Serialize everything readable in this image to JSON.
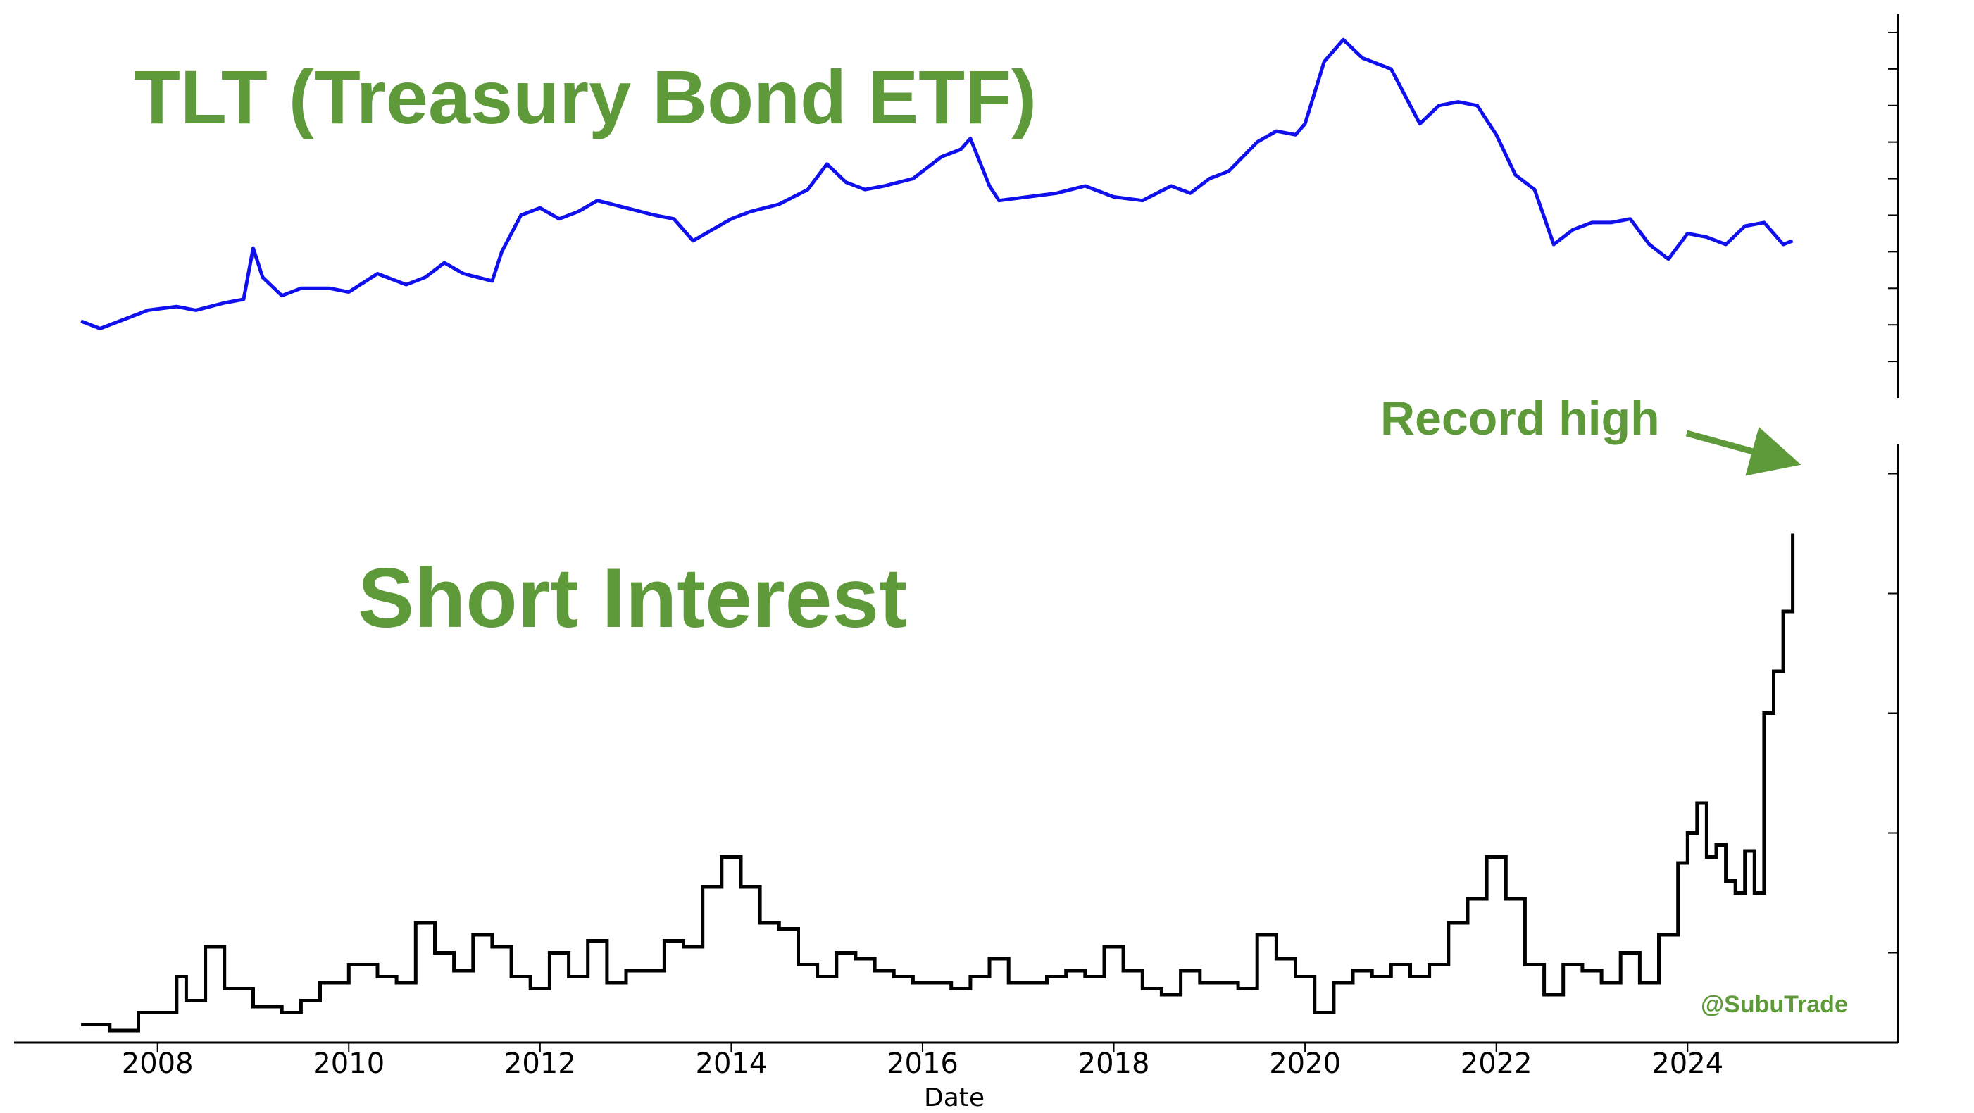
{
  "chart_data": [
    {
      "type": "line",
      "title": "TLT (Treasury Bond ETF)",
      "series_color": "#1010ee",
      "ylim": [
        70,
        175
      ],
      "x": [
        2007.2,
        2007.4,
        2007.6,
        2007.9,
        2008.2,
        2008.4,
        2008.7,
        2008.9,
        2009.0,
        2009.1,
        2009.3,
        2009.5,
        2009.8,
        2010.0,
        2010.3,
        2010.6,
        2010.8,
        2011.0,
        2011.2,
        2011.5,
        2011.6,
        2011.8,
        2012.0,
        2012.2,
        2012.4,
        2012.6,
        2012.9,
        2013.2,
        2013.4,
        2013.6,
        2013.8,
        2014.0,
        2014.2,
        2014.5,
        2014.8,
        2015.0,
        2015.2,
        2015.4,
        2015.6,
        2015.9,
        2016.2,
        2016.4,
        2016.5,
        2016.7,
        2016.8,
        2017.1,
        2017.4,
        2017.7,
        2018.0,
        2018.3,
        2018.6,
        2018.8,
        2019.0,
        2019.2,
        2019.5,
        2019.7,
        2019.9,
        2020.0,
        2020.2,
        2020.4,
        2020.6,
        2020.9,
        2021.2,
        2021.4,
        2021.6,
        2021.8,
        2022.0,
        2022.2,
        2022.4,
        2022.6,
        2022.8,
        2023.0,
        2023.2,
        2023.4,
        2023.6,
        2023.8,
        2024.0,
        2024.2,
        2024.4,
        2024.6,
        2024.8,
        2025.0,
        2025.1
      ],
      "values": [
        91,
        89,
        91,
        94,
        95,
        94,
        96,
        97,
        111,
        103,
        98,
        100,
        100,
        99,
        104,
        101,
        103,
        107,
        104,
        102,
        110,
        120,
        122,
        119,
        121,
        124,
        122,
        120,
        119,
        113,
        116,
        119,
        121,
        123,
        127,
        134,
        129,
        127,
        128,
        130,
        136,
        138,
        141,
        128,
        124,
        125,
        126,
        128,
        125,
        124,
        128,
        126,
        130,
        132,
        140,
        143,
        142,
        145,
        162,
        168,
        163,
        160,
        145,
        150,
        151,
        150,
        142,
        131,
        127,
        112,
        116,
        118,
        118,
        119,
        112,
        108,
        115,
        114,
        112,
        117,
        118,
        112,
        113
      ]
    },
    {
      "type": "line",
      "title": "Short Interest",
      "annotation": "Record high",
      "watermark": "@SubuTrade",
      "series_color": "#000000",
      "xlabel": "Date",
      "xticks": [
        "2008",
        "2010",
        "2012",
        "2014",
        "2016",
        "2018",
        "2020",
        "2022",
        "2024"
      ],
      "ylim": [
        0,
        100
      ],
      "x": [
        2007.2,
        2007.5,
        2007.8,
        2008.0,
        2008.2,
        2008.3,
        2008.5,
        2008.7,
        2009.0,
        2009.3,
        2009.5,
        2009.7,
        2010.0,
        2010.3,
        2010.5,
        2010.7,
        2010.9,
        2011.1,
        2011.3,
        2011.5,
        2011.7,
        2011.9,
        2012.1,
        2012.3,
        2012.5,
        2012.7,
        2012.9,
        2013.1,
        2013.3,
        2013.5,
        2013.7,
        2013.9,
        2014.1,
        2014.3,
        2014.5,
        2014.7,
        2014.9,
        2015.1,
        2015.3,
        2015.5,
        2015.7,
        2015.9,
        2016.1,
        2016.3,
        2016.5,
        2016.7,
        2016.9,
        2017.1,
        2017.3,
        2017.5,
        2017.7,
        2017.9,
        2018.1,
        2018.3,
        2018.5,
        2018.7,
        2018.9,
        2019.1,
        2019.3,
        2019.5,
        2019.7,
        2019.9,
        2020.1,
        2020.3,
        2020.5,
        2020.7,
        2020.9,
        2021.1,
        2021.3,
        2021.5,
        2021.7,
        2021.9,
        2022.1,
        2022.3,
        2022.5,
        2022.7,
        2022.9,
        2023.1,
        2023.3,
        2023.5,
        2023.7,
        2023.9,
        2024.0,
        2024.1,
        2024.2,
        2024.3,
        2024.4,
        2024.5,
        2024.6,
        2024.7,
        2024.8,
        2024.9,
        2025.0,
        2025.1
      ],
      "values": [
        3,
        2,
        5,
        5,
        11,
        7,
        16,
        9,
        6,
        5,
        7,
        10,
        13,
        11,
        10,
        20,
        15,
        12,
        18,
        16,
        11,
        9,
        15,
        11,
        17,
        10,
        12,
        12,
        17,
        16,
        26,
        31,
        26,
        20,
        19,
        13,
        11,
        15,
        14,
        12,
        11,
        10,
        10,
        9,
        11,
        14,
        10,
        10,
        11,
        12,
        11,
        16,
        12,
        9,
        8,
        12,
        10,
        10,
        9,
        18,
        14,
        11,
        5,
        10,
        12,
        11,
        13,
        11,
        13,
        20,
        24,
        31,
        24,
        13,
        8,
        13,
        12,
        10,
        15,
        10,
        18,
        30,
        35,
        40,
        31,
        33,
        27,
        25,
        32,
        25,
        55,
        62,
        72,
        85
      ]
    }
  ]
}
